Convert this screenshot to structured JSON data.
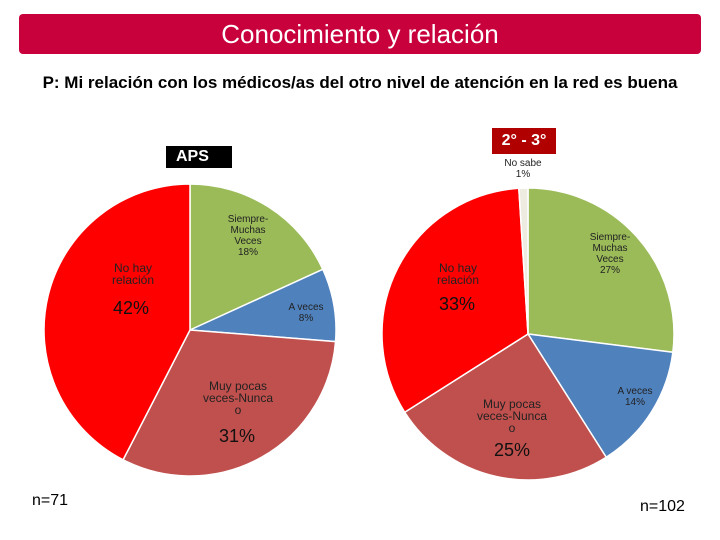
{
  "title": "Conocimiento y relación",
  "question": "P: Mi relación con los médicos/as del otro nivel de atención en la red es buena",
  "colors": {
    "title_bar": "#c8003c",
    "no_hay_relacion": "#ff0000",
    "siempre": "#9bbb59",
    "a_veces": "#4f81bd",
    "muy_pocas": "#c0504d",
    "no_sabe": "#eeece1"
  },
  "chart_data": [
    {
      "type": "pie",
      "title": "APS",
      "n_label": "n=71",
      "slices": [
        {
          "label_lines": [
            "Siempre-",
            "Muchas",
            "Veces",
            "18%"
          ],
          "value": 18,
          "color": "#9bbb59",
          "big": false
        },
        {
          "label_lines": [
            "A veces",
            "8%"
          ],
          "value": 8,
          "color": "#4f81bd",
          "big": false
        },
        {
          "label_lines": [
            "Muy pocas",
            "veces-Nunca",
            "o"
          ],
          "pct_text": "31%",
          "value": 31,
          "color": "#c0504d",
          "big": true
        },
        {
          "label_lines": [
            "No hay",
            "relación"
          ],
          "pct_text": "42%",
          "value": 42,
          "color": "#ff0000",
          "big": true
        }
      ]
    },
    {
      "type": "pie",
      "title": "2° - 3°",
      "n_label": "n=102",
      "slices": [
        {
          "label_lines": [
            "Siempre-",
            "Muchas",
            "Veces",
            "27%"
          ],
          "value": 27,
          "color": "#9bbb59",
          "big": false
        },
        {
          "label_lines": [
            "A veces",
            "14%"
          ],
          "value": 14,
          "color": "#4f81bd",
          "big": false
        },
        {
          "label_lines": [
            "Muy pocas",
            "veces-Nunca",
            "o"
          ],
          "pct_text": "25%",
          "value": 25,
          "color": "#c0504d",
          "big": true
        },
        {
          "label_lines": [
            "No hay",
            "relación"
          ],
          "pct_text": "33%",
          "value": 33,
          "color": "#ff0000",
          "big": true
        },
        {
          "label_lines": [
            "No sabe",
            "1%"
          ],
          "value": 1,
          "color": "#eeece1",
          "big": false
        }
      ]
    }
  ]
}
